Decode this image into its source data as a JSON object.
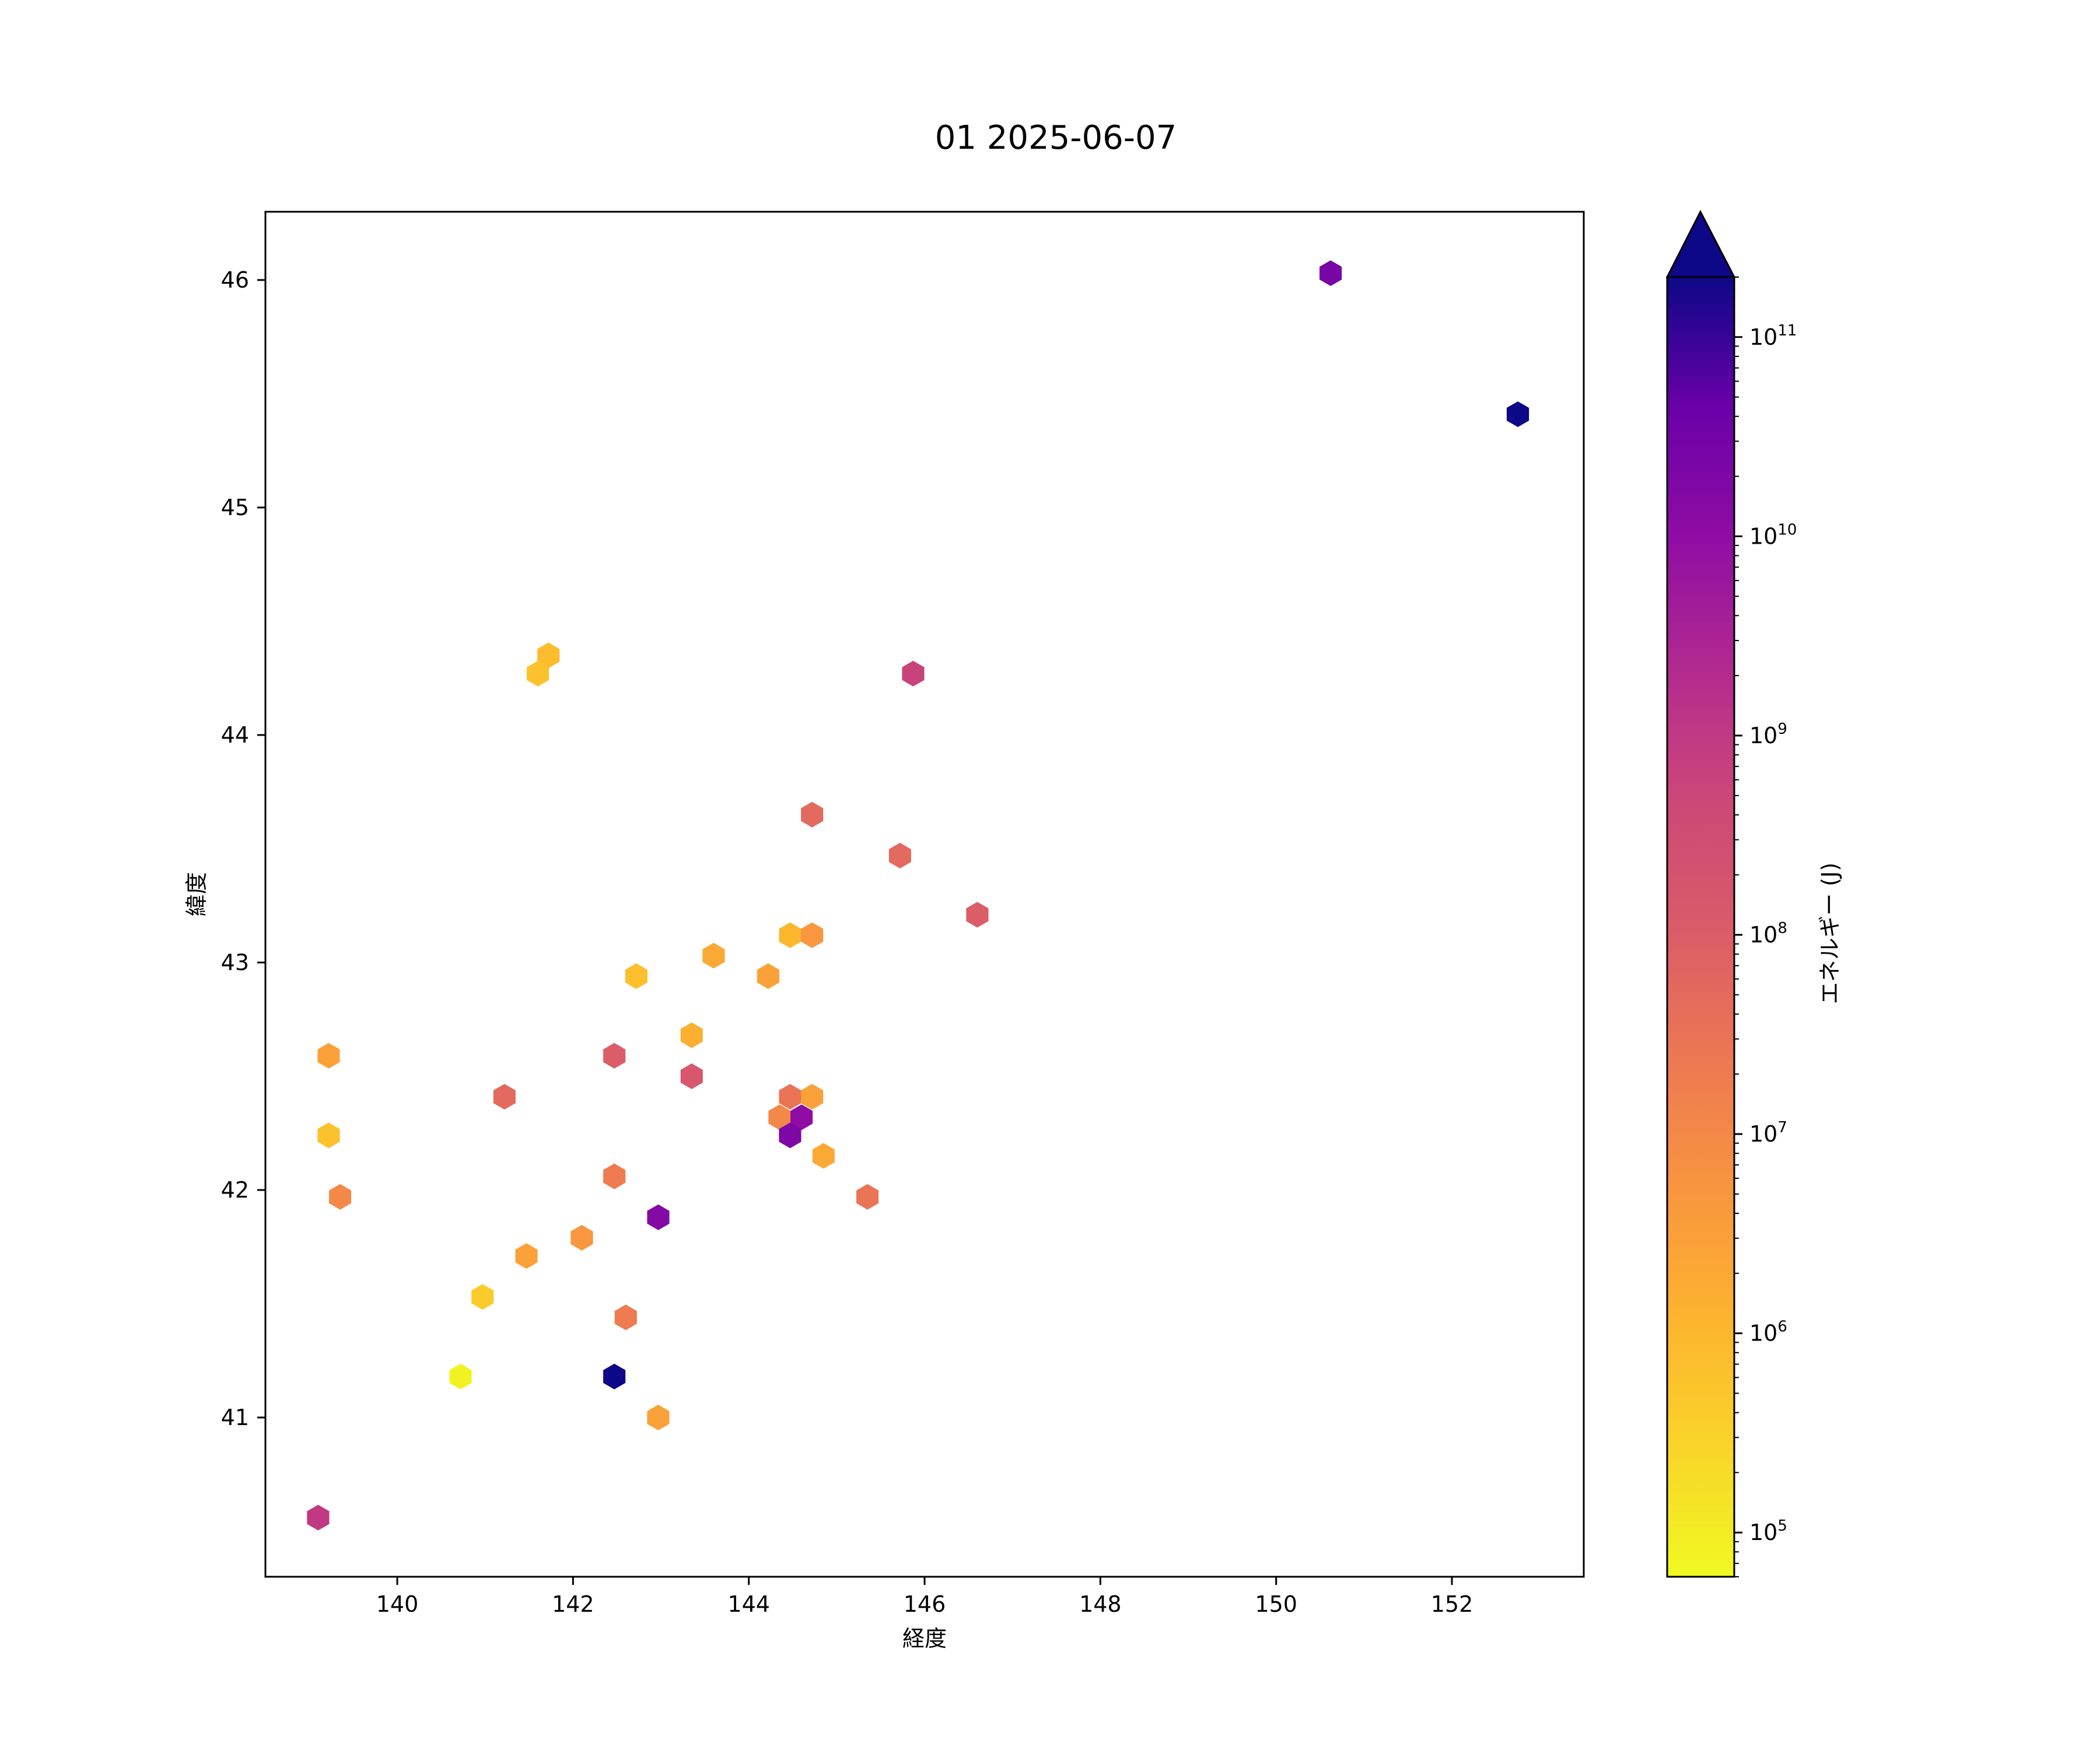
{
  "chart_data": {
    "type": "hexbin",
    "title": "01 2025-06-07",
    "xlabel": "経度",
    "ylabel": "緯度",
    "xlim": [
      138.5,
      153.5
    ],
    "ylim": [
      40.3,
      46.3
    ],
    "xticks": [
      140,
      142,
      144,
      146,
      148,
      150,
      152
    ],
    "yticks": [
      41,
      42,
      43,
      44,
      45,
      46
    ],
    "grid": false,
    "colorbar": {
      "label": "エネルギー (J)",
      "scale": "log",
      "colormap": "plasma_r",
      "range": [
        60000,
        200000000000
      ],
      "extend": "max",
      "extend_color": "#0d0887",
      "tick_exponents": [
        5,
        6,
        7,
        8,
        9,
        10,
        11
      ],
      "tick_base": "10"
    },
    "points": [
      {
        "lon": 150.62,
        "lat": 46.03,
        "energy": 25000000000
      },
      {
        "lon": 152.75,
        "lat": 45.41,
        "energy": 200000000000
      },
      {
        "lon": 141.72,
        "lat": 44.35,
        "energy": 800000
      },
      {
        "lon": 141.6,
        "lat": 44.27,
        "energy": 600000
      },
      {
        "lon": 145.87,
        "lat": 44.27,
        "energy": 600000000
      },
      {
        "lon": 144.72,
        "lat": 43.65,
        "energy": 50000000
      },
      {
        "lon": 145.72,
        "lat": 43.47,
        "energy": 50000000
      },
      {
        "lon": 146.6,
        "lat": 43.21,
        "energy": 100000000
      },
      {
        "lon": 144.47,
        "lat": 43.12,
        "energy": 1000000
      },
      {
        "lon": 144.72,
        "lat": 43.12,
        "energy": 5000000
      },
      {
        "lon": 143.6,
        "lat": 43.03,
        "energy": 2000000
      },
      {
        "lon": 142.72,
        "lat": 42.94,
        "energy": 700000
      },
      {
        "lon": 144.22,
        "lat": 42.94,
        "energy": 3000000
      },
      {
        "lon": 143.35,
        "lat": 42.68,
        "energy": 1500000
      },
      {
        "lon": 139.22,
        "lat": 42.59,
        "energy": 3000000
      },
      {
        "lon": 142.47,
        "lat": 42.59,
        "energy": 100000000
      },
      {
        "lon": 143.35,
        "lat": 42.5,
        "energy": 150000000
      },
      {
        "lon": 141.22,
        "lat": 42.41,
        "energy": 50000000
      },
      {
        "lon": 144.47,
        "lat": 42.41,
        "energy": 30000000
      },
      {
        "lon": 144.72,
        "lat": 42.41,
        "energy": 3000000
      },
      {
        "lon": 144.35,
        "lat": 42.32,
        "energy": 10000000
      },
      {
        "lon": 144.6,
        "lat": 42.32,
        "energy": 10000000000
      },
      {
        "lon": 139.22,
        "lat": 42.24,
        "energy": 600000
      },
      {
        "lon": 144.47,
        "lat": 42.24,
        "energy": 20000000000
      },
      {
        "lon": 144.85,
        "lat": 42.15,
        "energy": 2000000
      },
      {
        "lon": 142.47,
        "lat": 42.06,
        "energy": 20000000
      },
      {
        "lon": 139.35,
        "lat": 41.97,
        "energy": 10000000
      },
      {
        "lon": 145.35,
        "lat": 41.97,
        "energy": 30000000
      },
      {
        "lon": 142.97,
        "lat": 41.88,
        "energy": 15000000000
      },
      {
        "lon": 142.1,
        "lat": 41.79,
        "energy": 5000000
      },
      {
        "lon": 141.47,
        "lat": 41.71,
        "energy": 3000000
      },
      {
        "lon": 140.97,
        "lat": 41.53,
        "energy": 400000
      },
      {
        "lon": 142.6,
        "lat": 41.44,
        "energy": 20000000
      },
      {
        "lon": 140.72,
        "lat": 41.18,
        "energy": 80000
      },
      {
        "lon": 142.47,
        "lat": 41.18,
        "energy": 200000000000
      },
      {
        "lon": 142.97,
        "lat": 41.0,
        "energy": 3000000
      },
      {
        "lon": 139.1,
        "lat": 40.56,
        "energy": 1000000000
      }
    ]
  }
}
